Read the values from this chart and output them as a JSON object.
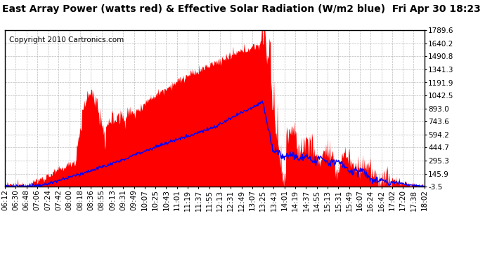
{
  "title": "East Array Power (watts red) & Effective Solar Radiation (W/m2 blue)  Fri Apr 30 18:23",
  "copyright": "Copyright 2010 Cartronics.com",
  "yticks": [
    1789.6,
    1640.2,
    1490.8,
    1341.3,
    1191.9,
    1042.5,
    893.0,
    743.6,
    594.2,
    444.7,
    295.3,
    145.9,
    -3.5
  ],
  "ymin": -3.5,
  "ymax": 1789.6,
  "background_color": "#ffffff",
  "plot_bg_color": "#ffffff",
  "red_fill_color": "#ff0000",
  "blue_line_color": "#0000ff",
  "grid_color": "#aaaaaa",
  "title_fontsize": 10,
  "copyright_fontsize": 7.5,
  "tick_fontsize": 7.5,
  "num_points": 720,
  "time_labels": [
    "06:12",
    "06:30",
    "06:48",
    "07:06",
    "07:24",
    "07:42",
    "08:00",
    "08:18",
    "08:36",
    "08:55",
    "09:13",
    "09:31",
    "09:49",
    "10:07",
    "10:25",
    "10:43",
    "11:01",
    "11:19",
    "11:37",
    "11:55",
    "12:13",
    "12:31",
    "12:49",
    "13:07",
    "13:25",
    "13:43",
    "14:01",
    "14:19",
    "14:37",
    "14:55",
    "15:13",
    "15:31",
    "15:49",
    "16:07",
    "16:24",
    "16:42",
    "17:02",
    "17:20",
    "17:38",
    "18:02"
  ]
}
